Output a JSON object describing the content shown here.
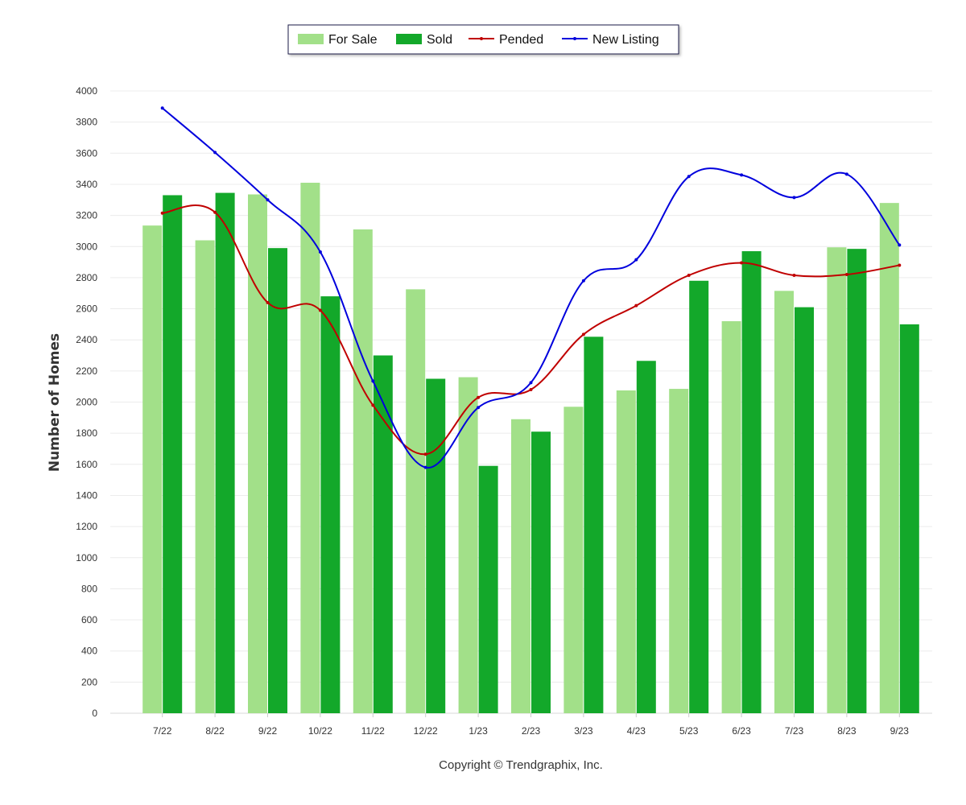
{
  "chart_data": {
    "type": "bar",
    "categories": [
      "7/22",
      "8/22",
      "9/22",
      "10/22",
      "11/22",
      "12/22",
      "1/23",
      "2/23",
      "3/23",
      "4/23",
      "5/23",
      "6/23",
      "7/23",
      "8/23",
      "9/23"
    ],
    "series": [
      {
        "name": "For Sale",
        "type": "bar",
        "color": "#a2e089",
        "values": [
          3135,
          3040,
          3335,
          3410,
          3110,
          2725,
          2160,
          1890,
          1970,
          2075,
          2085,
          2520,
          2715,
          2995,
          3280
        ]
      },
      {
        "name": "Sold",
        "type": "bar",
        "color": "#13a82a",
        "values": [
          3330,
          3345,
          2990,
          2680,
          2300,
          2150,
          1590,
          1810,
          2420,
          2265,
          2780,
          2970,
          2610,
          2985,
          2500
        ]
      },
      {
        "name": "Pended",
        "type": "line",
        "color": "#c00000",
        "values": [
          3215,
          3220,
          2640,
          2590,
          1980,
          1665,
          2030,
          2080,
          2435,
          2620,
          2815,
          2895,
          2815,
          2820,
          2880
        ]
      },
      {
        "name": "New Listing",
        "type": "line",
        "color": "#0000dd",
        "values": [
          3890,
          3605,
          3300,
          2965,
          2135,
          1580,
          1965,
          2125,
          2780,
          2915,
          3450,
          3460,
          3315,
          3465,
          3010
        ]
      }
    ],
    "ylabel": "Number of Homes",
    "xlabel": "",
    "ylim": [
      0,
      4000
    ],
    "ytick_step": 200,
    "grid": true,
    "legend_position": "top-center"
  },
  "footer": {
    "copyright": "Copyright © Trendgraphix, Inc."
  }
}
